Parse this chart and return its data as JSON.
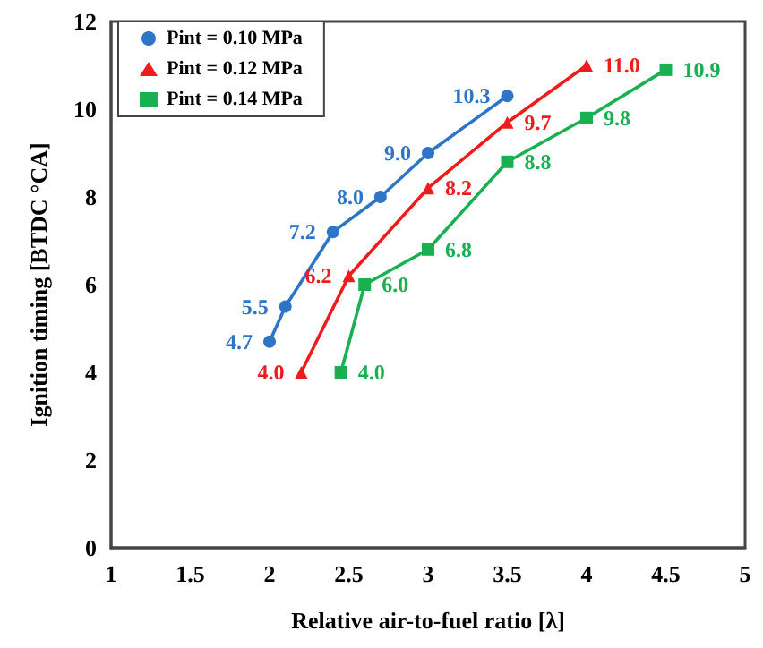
{
  "chart_data": {
    "type": "line",
    "xlabel": "Relative air-to-fuel ratio [λ]",
    "ylabel": "Ignition timing [BTDC °CA]",
    "xlim": [
      1,
      5
    ],
    "xticks": [
      1,
      1.5,
      2,
      2.5,
      3,
      3.5,
      4,
      4.5,
      5
    ],
    "ylim": [
      0,
      12
    ],
    "yticks": [
      0,
      2,
      4,
      6,
      8,
      10,
      12
    ],
    "grid": false,
    "legend": "top left",
    "series": [
      {
        "name": "Pint = 0.10 MPa",
        "color": "#2e75c8",
        "marker": "circle",
        "x": [
          2.0,
          2.1,
          2.4,
          2.7,
          3.0,
          3.5
        ],
        "values": [
          4.7,
          5.5,
          7.2,
          8.0,
          9.0,
          10.3
        ],
        "value_labels": [
          "4.7",
          "5.5",
          "7.2",
          "8.0",
          "9.0",
          "10.3"
        ]
      },
      {
        "name": "Pint = 0.12 MPa",
        "color": "#ee1c1c",
        "marker": "triangle",
        "x": [
          2.2,
          2.5,
          3.0,
          3.5,
          4.0
        ],
        "values": [
          4.0,
          6.2,
          8.2,
          9.7,
          11.0
        ],
        "value_labels": [
          "4.0",
          "6.2",
          "8.2",
          "9.7",
          "11.0"
        ]
      },
      {
        "name": "Pint = 0.14 MPa",
        "color": "#18b050",
        "marker": "square",
        "x": [
          2.45,
          2.6,
          3.0,
          3.5,
          4.0,
          4.5
        ],
        "values": [
          4.0,
          6.0,
          6.8,
          8.8,
          9.8,
          10.9
        ],
        "value_labels": [
          "4.0",
          "6.0",
          "6.8",
          "8.8",
          "9.8",
          "10.9"
        ]
      }
    ]
  }
}
